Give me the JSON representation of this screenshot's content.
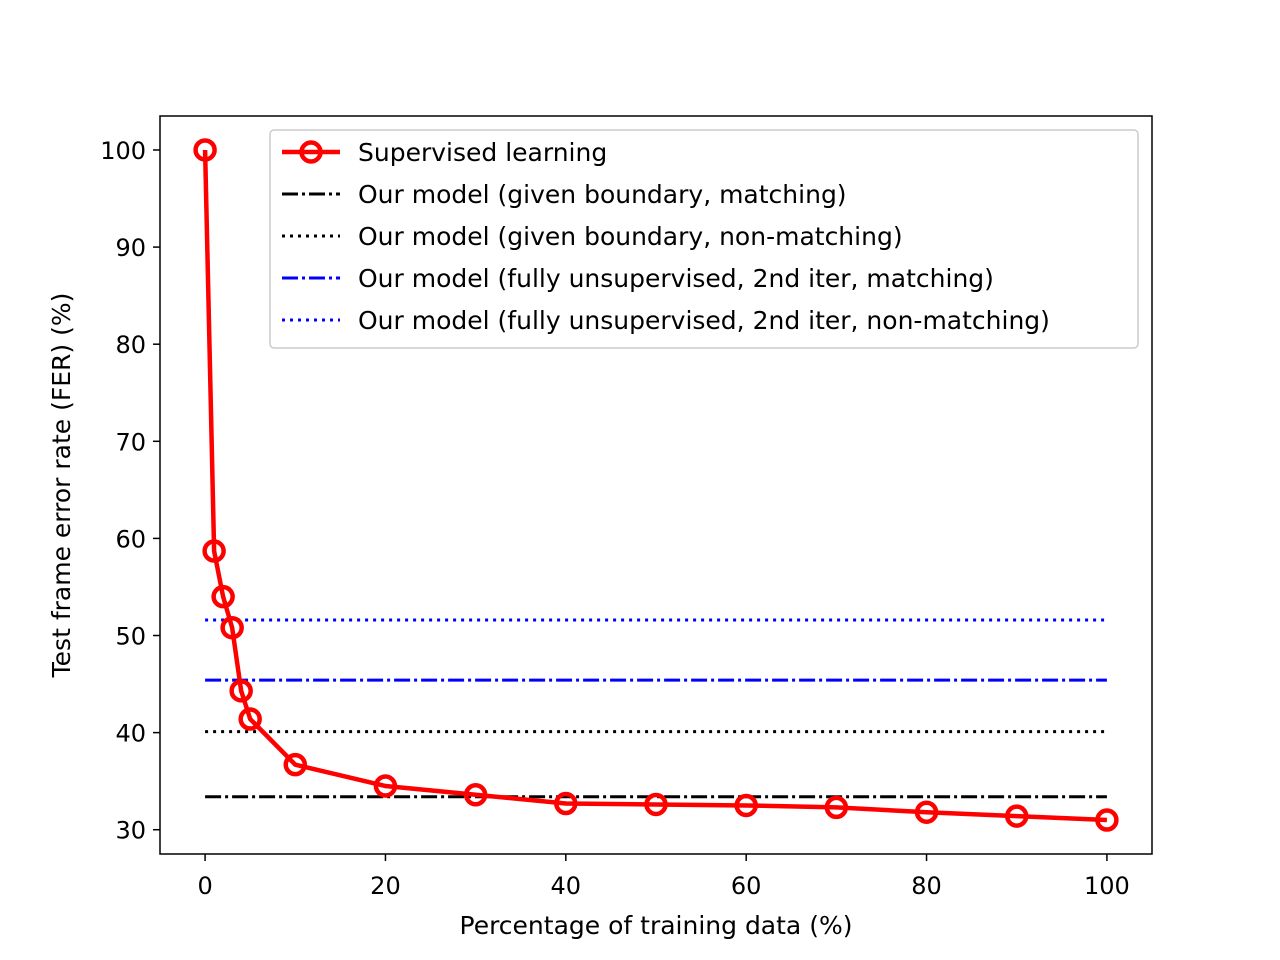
{
  "chart_data": {
    "type": "line",
    "title": "",
    "xlabel": "Percentage of training data (%)",
    "ylabel": "Test frame error rate (FER) (%)",
    "xlim": [
      -5,
      105
    ],
    "ylim": [
      27.5,
      103.5
    ],
    "xticks": [
      0,
      20,
      40,
      60,
      80,
      100
    ],
    "yticks": [
      30,
      40,
      50,
      60,
      70,
      80,
      90,
      100
    ],
    "grid": false,
    "legend_position": "top-right",
    "series": [
      {
        "name": "Supervised learning",
        "style": "solid",
        "marker": "circle",
        "color": "#ff0000",
        "x": [
          0,
          1,
          2,
          3,
          4,
          5,
          10,
          20,
          30,
          40,
          50,
          60,
          70,
          80,
          90,
          100
        ],
        "y": [
          100,
          58.7,
          54.0,
          50.8,
          44.3,
          41.4,
          36.7,
          34.5,
          33.6,
          32.7,
          32.6,
          32.5,
          32.3,
          31.8,
          31.4,
          31.0
        ]
      },
      {
        "name": "Our model (given boundary, matching)",
        "style": "dashdot",
        "color": "#000000",
        "x": [
          0,
          100
        ],
        "y": [
          33.4,
          33.4
        ]
      },
      {
        "name": "Our model (given boundary, non-matching)",
        "style": "dotted",
        "color": "#000000",
        "x": [
          0,
          100
        ],
        "y": [
          40.1,
          40.1
        ]
      },
      {
        "name": "Our model (fully unsupervised, 2nd iter, matching)",
        "style": "dashdot",
        "color": "#0000ff",
        "x": [
          0,
          100
        ],
        "y": [
          45.4,
          45.4
        ]
      },
      {
        "name": "Our model (fully unsupervised, 2nd iter, non-matching)",
        "style": "dotted",
        "color": "#0000ff",
        "x": [
          0,
          100
        ],
        "y": [
          51.6,
          51.6
        ]
      }
    ]
  }
}
